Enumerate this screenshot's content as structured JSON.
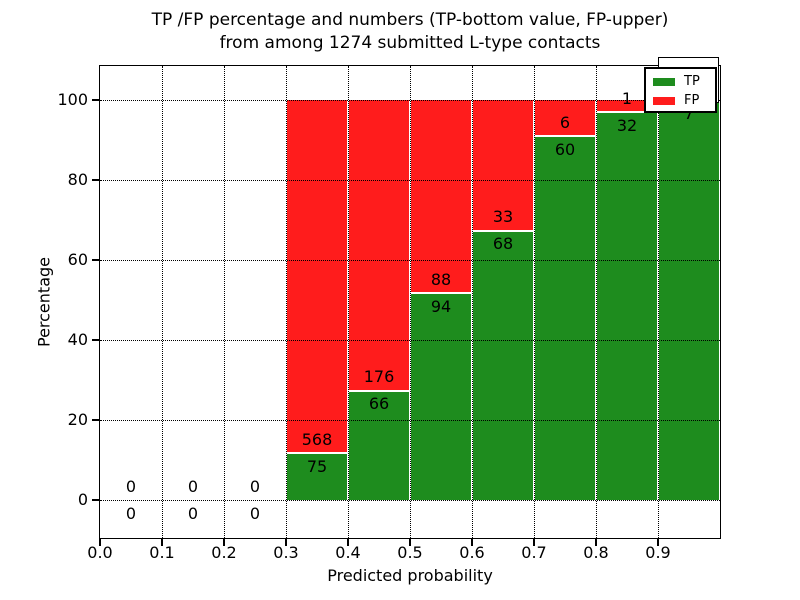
{
  "colors": {
    "tp_green": "#1e8c1e",
    "fp_red": "#ff1c1c",
    "grid": "#000000",
    "background": "#ffffff"
  },
  "title": {
    "line1": "TP /FP percentage and numbers (TP-bottom value, FP-upper)",
    "line2": "from among 1274 submitted L-type contacts"
  },
  "axes": {
    "xlabel": "Predicted probability",
    "ylabel": "Percentage",
    "x_ticks": [
      {
        "v": 0.0,
        "label": "0.0"
      },
      {
        "v": 0.1,
        "label": "0.1"
      },
      {
        "v": 0.2,
        "label": "0.2"
      },
      {
        "v": 0.3,
        "label": "0.3"
      },
      {
        "v": 0.4,
        "label": "0.4"
      },
      {
        "v": 0.5,
        "label": "0.5"
      },
      {
        "v": 0.6,
        "label": "0.6"
      },
      {
        "v": 0.7,
        "label": "0.7"
      },
      {
        "v": 0.8,
        "label": "0.8"
      },
      {
        "v": 0.9,
        "label": "0.9"
      }
    ],
    "y_ticks": [
      {
        "v": 0,
        "label": "0"
      },
      {
        "v": 20,
        "label": "20"
      },
      {
        "v": 40,
        "label": "40"
      },
      {
        "v": 60,
        "label": "60"
      },
      {
        "v": 80,
        "label": "80"
      },
      {
        "v": 100,
        "label": "100"
      }
    ]
  },
  "legend": {
    "entries": [
      {
        "label": "TP",
        "color_key": "tp_green"
      },
      {
        "label": "FP",
        "color_key": "fp_red"
      }
    ]
  },
  "chart_data": {
    "type": "bar",
    "stacked": true,
    "title": "TP /FP percentage and numbers (TP-bottom value, FP-upper) from among 1274 submitted L-type contacts",
    "xlabel": "Predicted probability",
    "ylabel": "Percentage",
    "total_contacts": 1274,
    "bin_width": 0.1,
    "xlim": [
      0.0,
      1.0
    ],
    "ylim_pct": [
      -9.5,
      108.5
    ],
    "grid": true,
    "legend_position": "upper right",
    "series": [
      {
        "name": "TP",
        "position": "bottom",
        "color": "#1e8c1e"
      },
      {
        "name": "FP",
        "position": "top",
        "color": "#ff1c1c"
      }
    ],
    "bins": [
      {
        "x0": 0.0,
        "x1": 0.1,
        "tp": 0,
        "fp": 0,
        "tp_label": "0",
        "fp_label": "0"
      },
      {
        "x0": 0.1,
        "x1": 0.2,
        "tp": 0,
        "fp": 0,
        "tp_label": "0",
        "fp_label": "0"
      },
      {
        "x0": 0.2,
        "x1": 0.3,
        "tp": 0,
        "fp": 0,
        "tp_label": "0",
        "fp_label": "0"
      },
      {
        "x0": 0.3,
        "x1": 0.4,
        "tp": 75,
        "fp": 568,
        "tp_label": "75",
        "fp_label": "568",
        "tp_pct": 11.7
      },
      {
        "x0": 0.4,
        "x1": 0.5,
        "tp": 66,
        "fp": 176,
        "tp_label": "66",
        "fp_label": "176",
        "tp_pct": 27.3
      },
      {
        "x0": 0.5,
        "x1": 0.6,
        "tp": 94,
        "fp": 88,
        "tp_label": "94",
        "fp_label": "88",
        "tp_pct": 51.6
      },
      {
        "x0": 0.6,
        "x1": 0.7,
        "tp": 68,
        "fp": 33,
        "tp_label": "68",
        "fp_label": "33",
        "tp_pct": 67.3
      },
      {
        "x0": 0.7,
        "x1": 0.8,
        "tp": 60,
        "fp": 6,
        "tp_label": "60",
        "fp_label": "6",
        "tp_pct": 90.9
      },
      {
        "x0": 0.8,
        "x1": 0.9,
        "tp": 32,
        "fp": 1,
        "tp_label": "32",
        "fp_label": "1",
        "tp_pct": 97.0
      },
      {
        "x0": 0.9,
        "x1": 1.0,
        "tp": 7,
        "fp": 0,
        "tp_label": "7",
        "fp_label_hidden": true,
        "tp_pct": 100.0
      }
    ]
  }
}
